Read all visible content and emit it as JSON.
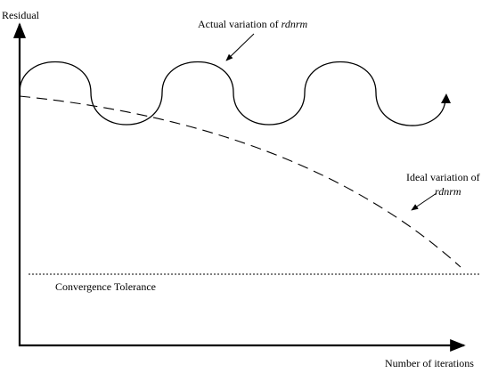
{
  "axes": {
    "y_label": "Residual",
    "x_label": "Number of iterations"
  },
  "annotations": {
    "actual": {
      "prefix": "Actual variation of ",
      "variable": "rdnrm"
    },
    "ideal": {
      "prefix": "Ideal variation of",
      "variable": "rdnrm"
    },
    "tolerance": "Convergence Tolerance"
  },
  "colors": {
    "ink": "#000000",
    "background": "#ffffff"
  }
}
